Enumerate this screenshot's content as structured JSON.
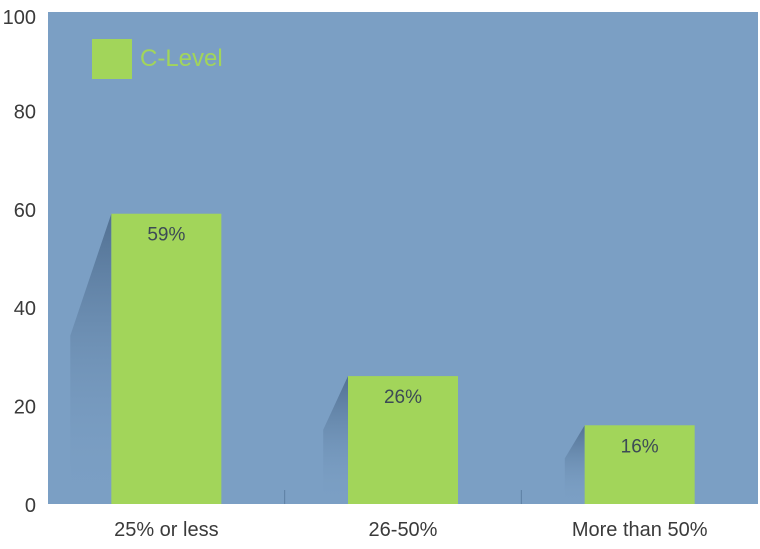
{
  "chart_data": {
    "type": "bar",
    "categories": [
      "25% or less",
      "26-50%",
      "More than 50%"
    ],
    "series": [
      {
        "name": "C-Level",
        "values": [
          59,
          26,
          16
        ]
      }
    ],
    "data_labels": [
      "59%",
      "26%",
      "16%"
    ],
    "ylim": [
      0,
      100
    ],
    "yticks": [
      "0",
      "20",
      "40",
      "60",
      "80",
      "100"
    ],
    "legend_position": "top-left",
    "grid": false
  },
  "colors": {
    "plot_background": "#7b9fc4",
    "bar": "#a2d55a",
    "legend_text": "#a2d55a",
    "axis_text": "#3a3a3a",
    "data_label_text": "#3c4a55"
  }
}
